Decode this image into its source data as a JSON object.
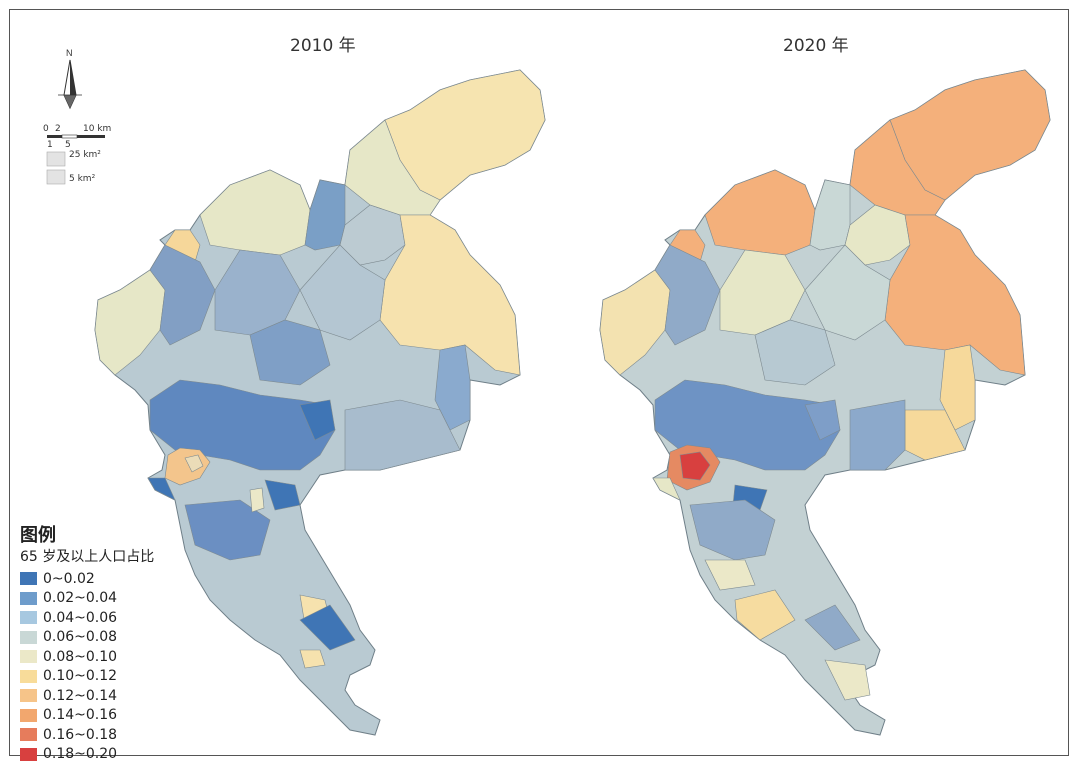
{
  "maps": [
    {
      "title": "2010 年"
    },
    {
      "title": "2020 年"
    }
  ],
  "north_label": "N",
  "scale": {
    "tick_0": "0",
    "tick_2": "2",
    "tick_10": "10 km",
    "tick_1": "1",
    "tick_5": "5",
    "inset_1": "25 km²",
    "inset_2": "5 km²"
  },
  "legend": {
    "title": "图例",
    "subtitle": "65 岁及以上人口占比",
    "classes": [
      {
        "label": "0~0.02",
        "color": "#3f75b5"
      },
      {
        "label": "0.02~0.04",
        "color": "#6e9ccb"
      },
      {
        "label": "0.04~0.06",
        "color": "#a7c8e0"
      },
      {
        "label": "0.06~0.08",
        "color": "#c9d8d6"
      },
      {
        "label": "0.08~0.10",
        "color": "#ebe8c8"
      },
      {
        "label": "0.10~0.12",
        "color": "#f8dc9a"
      },
      {
        "label": "0.12~0.14",
        "color": "#f6c489"
      },
      {
        "label": "0.14~0.16",
        "color": "#f2a76e"
      },
      {
        "label": "0.16~0.18",
        "color": "#e67c5c"
      },
      {
        "label": "0.18~0.20",
        "color": "#d8403f"
      }
    ]
  }
}
